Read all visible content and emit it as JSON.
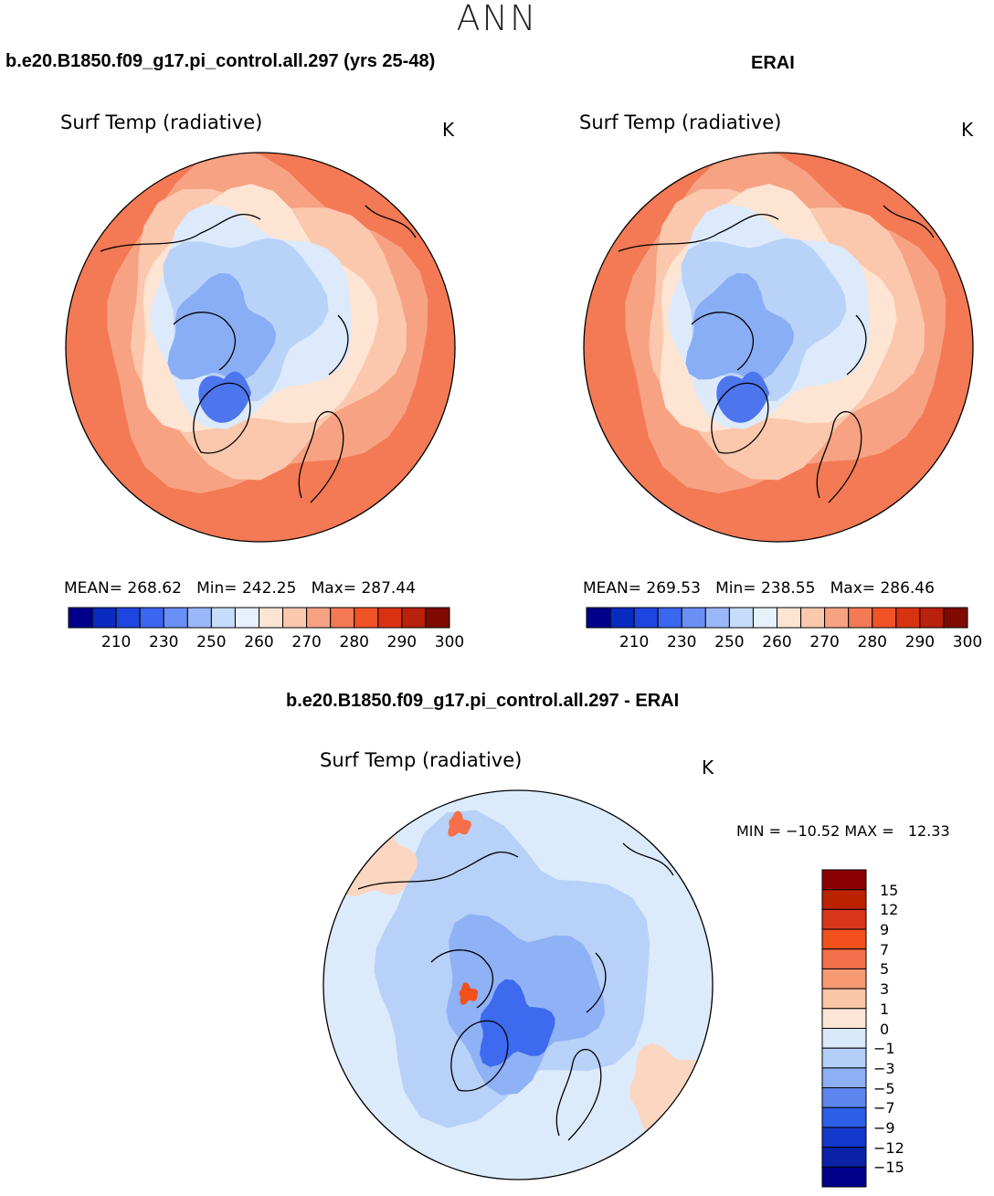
{
  "season": "ANN",
  "panels": [
    {
      "case_title": "b.e20.B1850.f09_g17.pi_control.all.297 (yrs 25-48)",
      "variable": "Surf Temp (radiative)",
      "units": "K",
      "stats": {
        "mean": "268.62",
        "min": "242.25",
        "max": "287.44"
      }
    },
    {
      "case_title": "ERAI",
      "variable": "Surf Temp (radiative)",
      "units": "K",
      "stats": {
        "mean": "269.53",
        "min": "238.55",
        "max": "286.46"
      }
    },
    {
      "case_title": "b.e20.B1850.f09_g17.pi_control.all.297 - ERAI",
      "variable": "Surf Temp (radiative)",
      "units": "K",
      "stats": {
        "min": "−10.52",
        "max": "12.33"
      }
    }
  ],
  "labels": {
    "mean": "MEAN=",
    "min": "Min=",
    "max": "Max=",
    "diff_min": "MIN =",
    "diff_max": "MAX ="
  },
  "field_colorbar": {
    "colors": [
      "#00008b",
      "#0a2bbf",
      "#1f45e0",
      "#3a66f0",
      "#6a8ff5",
      "#9ab8f9",
      "#c5dcfb",
      "#e6f1fc",
      "#fde4d3",
      "#fbc8ad",
      "#f7a283",
      "#f37a55",
      "#ef5327",
      "#d93211",
      "#b8210c",
      "#7f0b00"
    ],
    "tick_labels": [
      "210",
      "230",
      "250",
      "260",
      "270",
      "280",
      "290",
      "300"
    ]
  },
  "diff_colorbar": {
    "colors": [
      "#8b0000",
      "#bb2200",
      "#d9361a",
      "#f2511e",
      "#f4704a",
      "#f69a74",
      "#fbc6a6",
      "#fde6d6",
      "#d9e8fb",
      "#b4cff8",
      "#8daff5",
      "#5d87ef",
      "#2d5ee8",
      "#1437cc",
      "#0a22a8",
      "#00008b"
    ],
    "tick_labels": [
      "15",
      "12",
      "9",
      "7",
      "5",
      "3",
      "1",
      "0",
      "−1",
      "−3",
      "−5",
      "−7",
      "−9",
      "−12",
      "−15"
    ]
  },
  "map_palette": {
    "ocean_warm": "#f37a55",
    "mid_warm": "#f7a283",
    "pale_warm": "#fbc8ad",
    "cream": "#fde4d3",
    "pale_blue": "#dceafc",
    "light_blue": "#b9d2f8",
    "mid_blue": "#8aaef5",
    "deep_blue": "#4d76ee",
    "coast": "#000000"
  }
}
